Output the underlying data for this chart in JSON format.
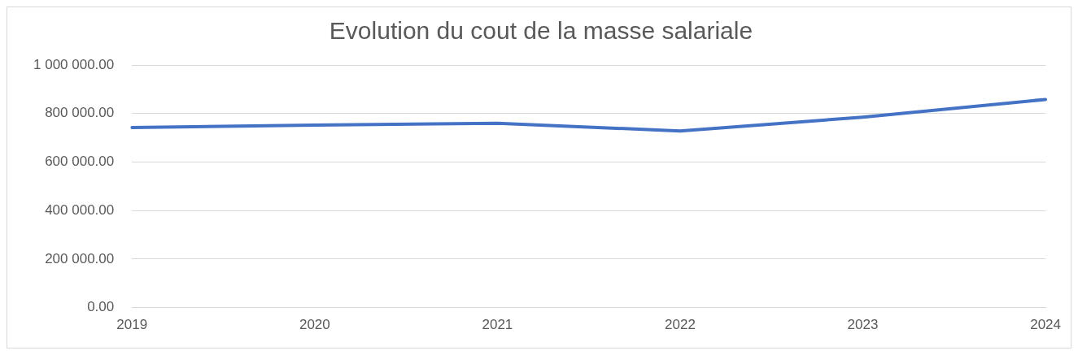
{
  "chart_data": {
    "type": "line",
    "title": "Evolution du cout de la masse salariale",
    "categories": [
      "2019",
      "2020",
      "2021",
      "2022",
      "2023",
      "2024"
    ],
    "series": [
      {
        "color": "#4472c4",
        "values": [
          742000,
          752000,
          760000,
          728000,
          785000,
          858000
        ]
      }
    ],
    "ylim": [
      0,
      1000000
    ],
    "yticks": [
      {
        "value": 0,
        "label": "0.00"
      },
      {
        "value": 200000,
        "label": "200 000.00"
      },
      {
        "value": 400000,
        "label": "400 000.00"
      },
      {
        "value": 600000,
        "label": "600 000.00"
      },
      {
        "value": 800000,
        "label": "800 000.00"
      },
      {
        "value": 1000000,
        "label": "1 000 000.00"
      }
    ],
    "grid": "y",
    "legend": false,
    "marker": "none",
    "line_style": "solid"
  }
}
